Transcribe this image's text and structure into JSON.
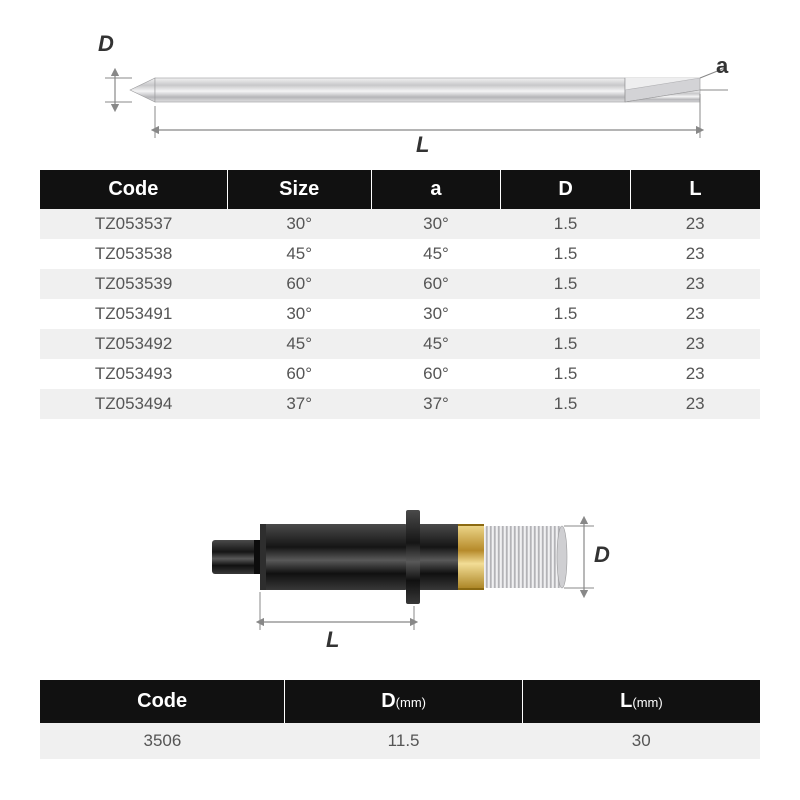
{
  "diagram1": {
    "labels": {
      "D": "D",
      "L": "L",
      "a": "a"
    },
    "colors": {
      "metal_light": "#e9e9ea",
      "metal_mid": "#c8c8ca",
      "metal_dark": "#9a9a9c",
      "dim_line": "#888888",
      "text": "#333333"
    },
    "arrow_size": 5
  },
  "table1": {
    "columns": [
      "Code",
      "Size",
      "a",
      "D",
      "L"
    ],
    "col_widths": [
      "26%",
      "20%",
      "18%",
      "18%",
      "18%"
    ],
    "rows": [
      [
        "TZ053537",
        "30°",
        "30°",
        "1.5",
        "23"
      ],
      [
        "TZ053538",
        "45°",
        "45°",
        "1.5",
        "23"
      ],
      [
        "TZ053539",
        "60°",
        "60°",
        "1.5",
        "23"
      ],
      [
        "TZ053491",
        "30°",
        "30°",
        "1.5",
        "23"
      ],
      [
        "TZ053492",
        "45°",
        "45°",
        "1.5",
        "23"
      ],
      [
        "TZ053493",
        "60°",
        "60°",
        "1.5",
        "23"
      ],
      [
        "TZ053494",
        "37°",
        "37°",
        "1.5",
        "23"
      ]
    ],
    "header_bg": "#111111",
    "header_fg": "#ffffff",
    "row_odd_bg": "#f0f0f0",
    "row_even_bg": "#ffffff",
    "cell_fg": "#555555"
  },
  "diagram2": {
    "labels": {
      "D": "D",
      "L": "L"
    },
    "colors": {
      "body_black": "#1a1a1a",
      "body_black_hi": "#3d3d3d",
      "gold": "#c9a037",
      "gold_hi": "#e8cf7a",
      "knurl_light": "#e6e6e8",
      "knurl_dark": "#a8a8ac",
      "dim_line": "#888888",
      "text": "#333333"
    },
    "arrow_size": 5
  },
  "table2": {
    "columns": [
      "Code",
      "D",
      "L"
    ],
    "units": [
      "",
      "(mm)",
      "(mm)"
    ],
    "col_widths": [
      "34%",
      "33%",
      "33%"
    ],
    "rows": [
      [
        "3506",
        "11.5",
        "30"
      ]
    ],
    "header_bg": "#111111",
    "header_fg": "#ffffff",
    "row_bg": "#f0f0f0",
    "cell_fg": "#555555"
  }
}
